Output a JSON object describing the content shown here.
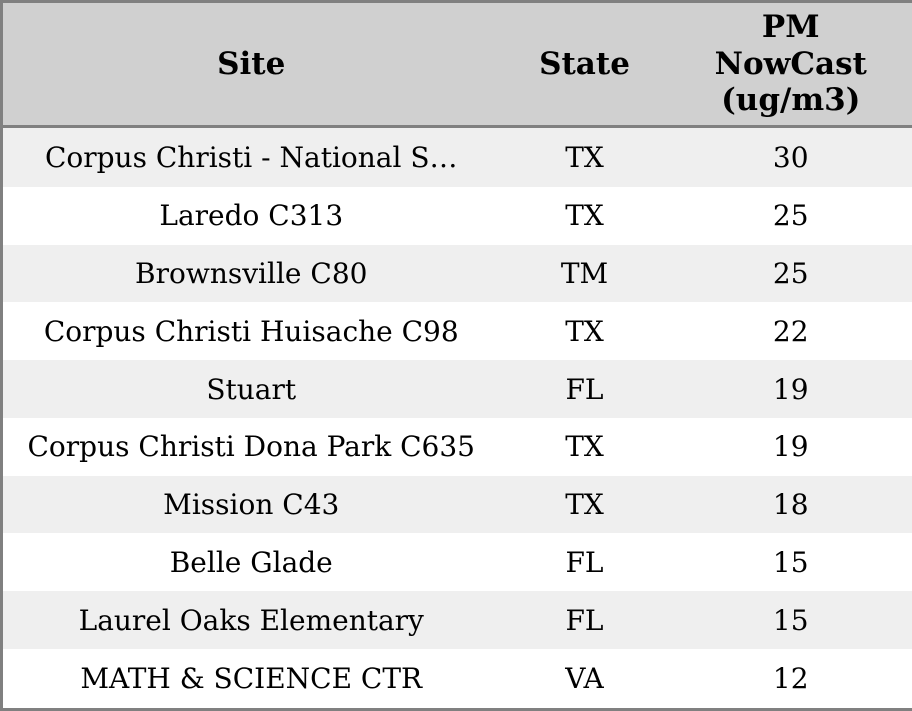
{
  "table": {
    "columns": [
      {
        "key": "site",
        "label": "Site"
      },
      {
        "key": "state",
        "label": "State"
      },
      {
        "key": "pm_nowcast",
        "label": "PM NowCast (ug/m3)"
      }
    ],
    "rows": [
      {
        "site": "Corpus Christi - National S…",
        "state": "TX",
        "pm_nowcast": "30"
      },
      {
        "site": "Laredo C313",
        "state": "TX",
        "pm_nowcast": "25"
      },
      {
        "site": "Brownsville C80",
        "state": "TM",
        "pm_nowcast": "25"
      },
      {
        "site": "Corpus Christi Huisache C98",
        "state": "TX",
        "pm_nowcast": "22"
      },
      {
        "site": "Stuart",
        "state": "FL",
        "pm_nowcast": "19"
      },
      {
        "site": "Corpus Christi Dona Park C635",
        "state": "TX",
        "pm_nowcast": "19"
      },
      {
        "site": "Mission C43",
        "state": "TX",
        "pm_nowcast": "18"
      },
      {
        "site": "Belle Glade",
        "state": "FL",
        "pm_nowcast": "15"
      },
      {
        "site": "Laurel Oaks Elementary",
        "state": "FL",
        "pm_nowcast": "15"
      },
      {
        "site": "MATH & SCIENCE CTR",
        "state": "VA",
        "pm_nowcast": "12"
      }
    ]
  },
  "colors": {
    "header_bg": "#d0d0d0",
    "row_alt_bg": "#efefef",
    "row_bg": "#ffffff",
    "border": "#808080",
    "text": "#000000"
  }
}
